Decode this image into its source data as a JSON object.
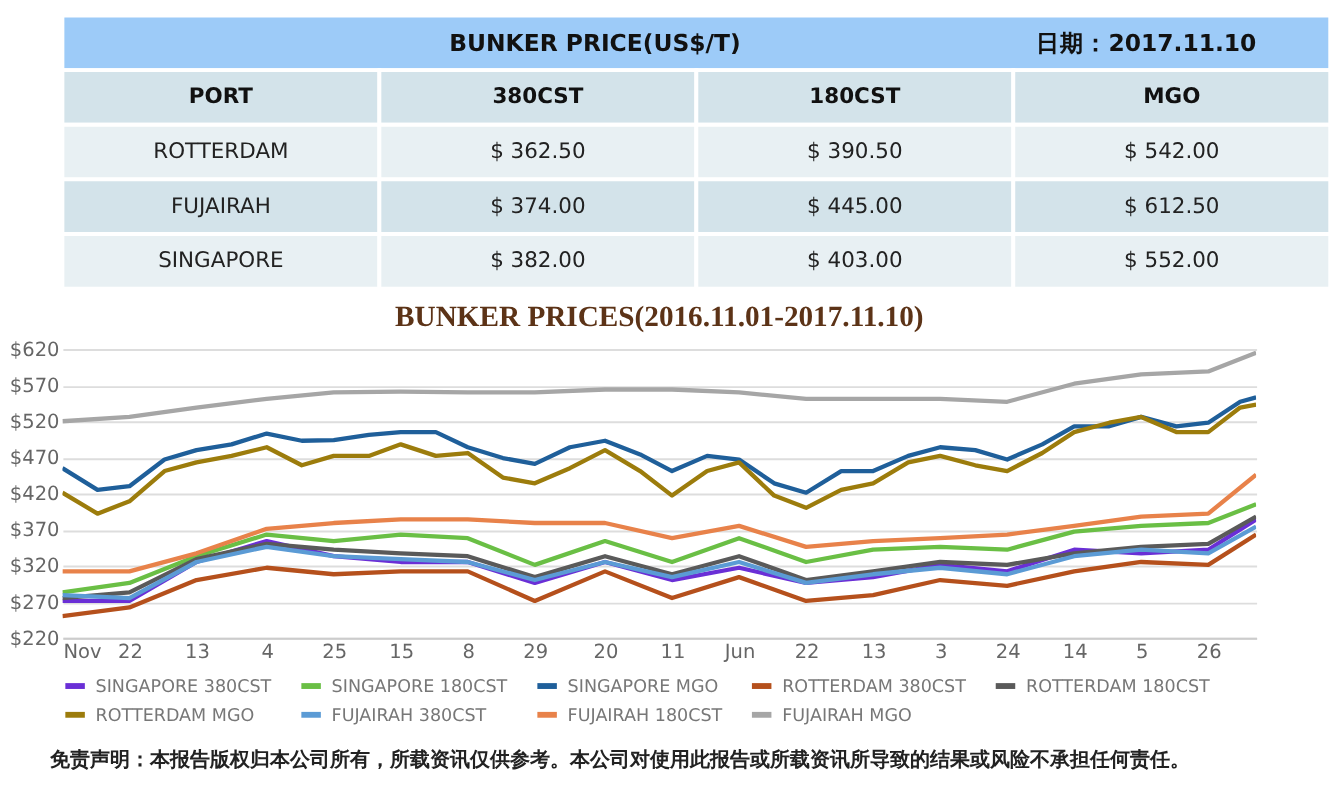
{
  "chart_data": [
    {
      "type": "other",
      "title": "BUNKER PRICE(US$/T)",
      "subtitle": "日期：2017.11.10",
      "annotations": [
        "PORT",
        "380CST",
        "180CST",
        "MGO",
        "ROTTERDAM",
        "$ 362.50",
        "$ 390.50",
        "$ 542.00",
        "FUJAIRAH",
        "$ 374.00",
        "$ 445.00",
        "$ 612.50",
        "SINGAPORE",
        "$ 382.00",
        "$ 403.00",
        "$ 552.00"
      ]
    },
    {
      "type": "line",
      "title": "BUNKER PRICES(2016.11.01-2017.11.10)",
      "x": [
        "2016-11-01",
        "2016-11-22",
        "2016-12-13",
        "2017-01-04",
        "2017-01-25",
        "2017-02-15",
        "2017-03-08",
        "2017-03-29",
        "2017-04-20",
        "2017-05-11",
        "2017-06-01",
        "2017-06-22",
        "2017-07-13",
        "2017-08-03",
        "2017-08-24",
        "2017-09-14",
        "2017-10-05",
        "2017-10-26",
        "2017-11-10"
      ],
      "series": [
        {
          "name": "SINGAPORE 380CST",
          "color": "#6a2fd6",
          "values": [
            271,
            271,
            325,
            354,
            333,
            325,
            325,
            296,
            325,
            300,
            317,
            296,
            304,
            321,
            312,
            342,
            337,
            342,
            384
          ]
        },
        {
          "name": "SINGAPORE 180CST",
          "color": "#6abf45",
          "values": [
            283,
            296,
            333,
            363,
            354,
            363,
            358,
            321,
            354,
            325,
            358,
            325,
            342,
            346,
            342,
            367,
            375,
            379,
            405
          ]
        },
        {
          "name": "SINGAPORE MGO",
          "color": "#1f5f9a",
          "x": [
            "2016-11-01",
            "2016-11-12",
            "2016-11-22",
            "2016-12-03",
            "2016-12-13",
            "2016-12-24",
            "2017-01-04",
            "2017-01-15",
            "2017-01-25",
            "2017-02-05",
            "2017-02-15",
            "2017-02-26",
            "2017-03-08",
            "2017-03-19",
            "2017-03-29",
            "2017-04-09",
            "2017-04-20",
            "2017-05-01",
            "2017-05-11",
            "2017-05-22",
            "2017-06-01",
            "2017-06-12",
            "2017-06-22",
            "2017-07-03",
            "2017-07-13",
            "2017-07-24",
            "2017-08-03",
            "2017-08-14",
            "2017-08-24",
            "2017-09-04",
            "2017-09-14",
            "2017-09-25",
            "2017-10-05",
            "2017-10-16",
            "2017-10-26",
            "2017-11-05",
            "2017-11-10"
          ],
          "values": [
            455,
            425,
            430,
            467,
            480,
            488,
            503,
            493,
            494,
            501,
            505,
            505,
            484,
            469,
            461,
            484,
            493,
            474,
            451,
            472,
            467,
            434,
            421,
            451,
            451,
            472,
            484,
            480,
            467,
            488,
            513,
            513,
            526,
            513,
            518,
            547,
            553
          ]
        },
        {
          "name": "ROTTERDAM 380CST",
          "color": "#b5501c",
          "values": [
            250,
            262,
            300,
            317,
            308,
            312,
            312,
            271,
            312,
            275,
            304,
            271,
            279,
            300,
            292,
            312,
            325,
            321,
            363
          ]
        },
        {
          "name": "ROTTERDAM 180CST",
          "color": "#5a5a5a",
          "values": [
            275,
            283,
            329,
            350,
            342,
            337,
            333,
            304,
            333,
            308,
            333,
            300,
            312,
            325,
            321,
            337,
            346,
            350,
            388
          ]
        },
        {
          "name": "ROTTERDAM MGO",
          "color": "#9c7c0c",
          "x": [
            "2016-11-01",
            "2016-11-12",
            "2016-11-22",
            "2016-12-03",
            "2016-12-13",
            "2016-12-24",
            "2017-01-04",
            "2017-01-15",
            "2017-01-25",
            "2017-02-05",
            "2017-02-15",
            "2017-02-26",
            "2017-03-08",
            "2017-03-19",
            "2017-03-29",
            "2017-04-09",
            "2017-04-20",
            "2017-05-01",
            "2017-05-11",
            "2017-05-22",
            "2017-06-01",
            "2017-06-12",
            "2017-06-22",
            "2017-07-03",
            "2017-07-13",
            "2017-07-24",
            "2017-08-03",
            "2017-08-14",
            "2017-08-24",
            "2017-09-04",
            "2017-09-14",
            "2017-09-25",
            "2017-10-05",
            "2017-10-16",
            "2017-10-26",
            "2017-11-05",
            "2017-11-10"
          ],
          "values": [
            421,
            392,
            409,
            451,
            463,
            472,
            484,
            459,
            472,
            472,
            488,
            472,
            476,
            442,
            434,
            455,
            480,
            451,
            417,
            451,
            463,
            417,
            400,
            425,
            434,
            463,
            472,
            459,
            451,
            476,
            505,
            518,
            526,
            505,
            505,
            539,
            543
          ]
        },
        {
          "name": "FUJAIRAH 380CST",
          "color": "#5b9bd5",
          "values": [
            279,
            275,
            325,
            346,
            333,
            329,
            325,
            300,
            325,
            304,
            325,
            296,
            308,
            317,
            308,
            333,
            342,
            337,
            374
          ]
        },
        {
          "name": "FUJAIRAH 180CST",
          "color": "#e8824a",
          "values": [
            312,
            312,
            337,
            371,
            379,
            384,
            384,
            379,
            379,
            358,
            375,
            346,
            354,
            358,
            363,
            375,
            388,
            392,
            446
          ]
        },
        {
          "name": "FUJAIRAH MGO",
          "color": "#a6a6a6",
          "values": [
            520,
            526,
            539,
            551,
            560,
            561,
            560,
            560,
            564,
            564,
            560,
            551,
            551,
            551,
            547,
            572,
            585,
            589,
            615
          ]
        }
      ],
      "xlim": [
        "2016-11-01",
        "2017-11-10"
      ],
      "xticks": [
        {
          "value": "2016-11-01",
          "label": "Nov"
        },
        {
          "value": "2016-11-22",
          "label": "22"
        },
        {
          "value": "2016-12-13",
          "label": "13"
        },
        {
          "value": "2017-01-04",
          "label": "4"
        },
        {
          "value": "2017-01-25",
          "label": "25"
        },
        {
          "value": "2017-02-15",
          "label": "15"
        },
        {
          "value": "2017-03-08",
          "label": "8"
        },
        {
          "value": "2017-03-29",
          "label": "29"
        },
        {
          "value": "2017-04-20",
          "label": "20"
        },
        {
          "value": "2017-05-11",
          "label": "11"
        },
        {
          "value": "2017-06-01",
          "label": "Jun"
        },
        {
          "value": "2017-06-22",
          "label": "22"
        },
        {
          "value": "2017-07-13",
          "label": "13"
        },
        {
          "value": "2017-08-03",
          "label": "3"
        },
        {
          "value": "2017-08-24",
          "label": "24"
        },
        {
          "value": "2017-09-14",
          "label": "14"
        },
        {
          "value": "2017-10-05",
          "label": "5"
        },
        {
          "value": "2017-10-26",
          "label": "26"
        }
      ],
      "ylim": [
        220,
        620
      ],
      "yticks": [
        {
          "value": 220,
          "label": "$220"
        },
        {
          "value": 270,
          "label": "$270"
        },
        {
          "value": 320,
          "label": "$320"
        },
        {
          "value": 370,
          "label": "$370"
        },
        {
          "value": 420,
          "label": "$420"
        },
        {
          "value": 470,
          "label": "$470"
        },
        {
          "value": 520,
          "label": "$520"
        },
        {
          "value": 570,
          "label": "$570"
        },
        {
          "value": 620,
          "label": "$620"
        }
      ],
      "grid": "y",
      "legend": "bottom",
      "annotations": [
        "免责声明：本报告版权归本公司所有，所载资讯仅供参考。本公司对使用此报告或所载资讯所导致的结果或风险不承担任何责任。"
      ]
    }
  ]
}
